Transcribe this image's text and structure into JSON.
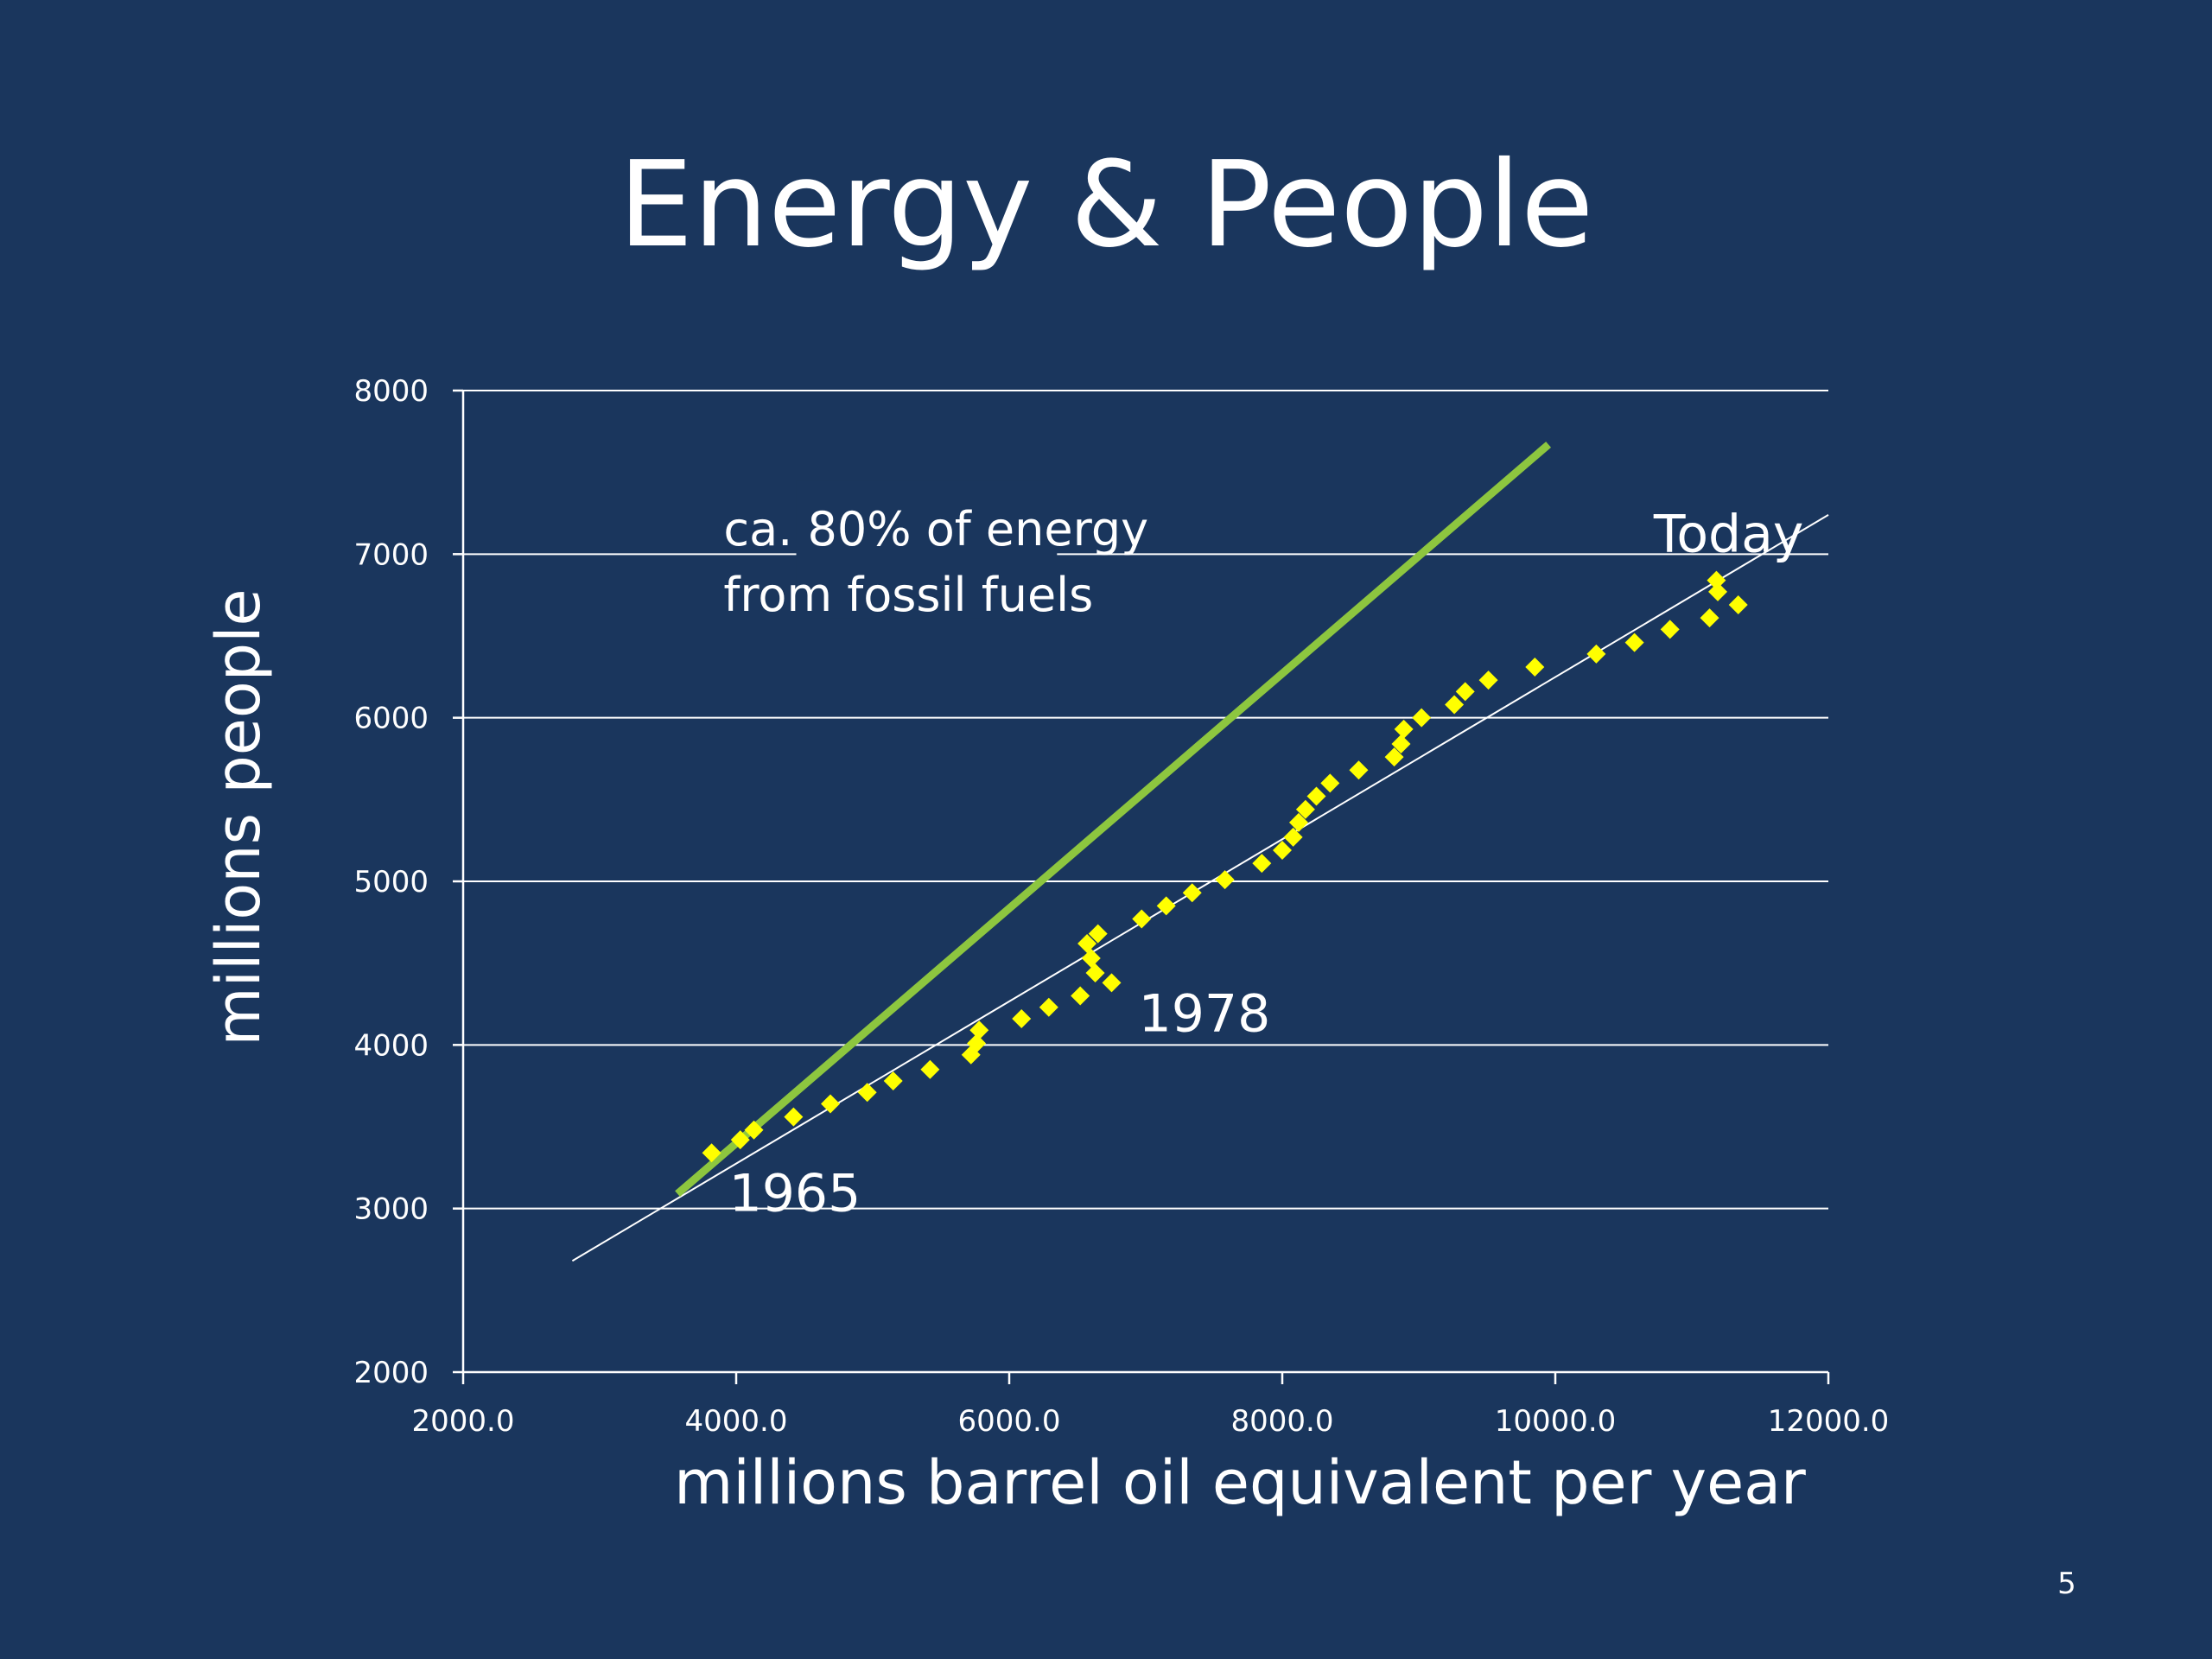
{
  "slide": {
    "title": "Energy & People",
    "page_number": "5",
    "colors": {
      "background": "#1a365d",
      "text": "#ffffff",
      "gridline": "#ffffff",
      "data_marker": "#ffff00",
      "fossil_line": "#8dc63f",
      "trend_line": "#ffffff"
    }
  },
  "chart_data": {
    "type": "scatter",
    "title": "",
    "xlabel": "millions barrel oil equivalent  per year",
    "ylabel": "millions people",
    "xlim": [
      2000,
      12000
    ],
    "ylim": [
      2000,
      8000
    ],
    "x_ticks": [
      2000,
      4000,
      6000,
      8000,
      10000,
      12000
    ],
    "x_tick_labels": [
      "2000.0",
      "4000.0",
      "6000.0",
      "8000.0",
      "10000.0",
      "12000.0"
    ],
    "y_ticks": [
      2000,
      3000,
      4000,
      5000,
      6000,
      7000,
      8000
    ],
    "y_tick_labels": [
      "2000",
      "3000",
      "4000",
      "5000",
      "6000",
      "7000",
      "8000"
    ],
    "grid": "horizontal",
    "legend": "none",
    "marker_shape": "diamond",
    "series": [
      {
        "points": [
          [
            3820,
            3340
          ],
          [
            4030,
            3420
          ],
          [
            4130,
            3480
          ],
          [
            4420,
            3560
          ],
          [
            4690,
            3640
          ],
          [
            4960,
            3710
          ],
          [
            5150,
            3780
          ],
          [
            5420,
            3850
          ],
          [
            5720,
            3940
          ],
          [
            5760,
            4010
          ],
          [
            5780,
            4090
          ],
          [
            6090,
            4160
          ],
          [
            6290,
            4230
          ],
          [
            6520,
            4300
          ],
          [
            6570,
            4620
          ],
          [
            6600,
            4530
          ],
          [
            6630,
            4440
          ],
          [
            6650,
            4680
          ],
          [
            6750,
            4380
          ],
          [
            6970,
            4770
          ],
          [
            7150,
            4850
          ],
          [
            7340,
            4930
          ],
          [
            7580,
            5010
          ],
          [
            7850,
            5110
          ],
          [
            8000,
            5190
          ],
          [
            8080,
            5270
          ],
          [
            8120,
            5360
          ],
          [
            8170,
            5440
          ],
          [
            8250,
            5520
          ],
          [
            8350,
            5600
          ],
          [
            8560,
            5680
          ],
          [
            8820,
            5760
          ],
          [
            8870,
            5840
          ],
          [
            8890,
            5930
          ],
          [
            9020,
            6000
          ],
          [
            9260,
            6080
          ],
          [
            9340,
            6160
          ],
          [
            9510,
            6230
          ],
          [
            9850,
            6310
          ],
          [
            10300,
            6390
          ],
          [
            10580,
            6460
          ],
          [
            10840,
            6540
          ],
          [
            11130,
            6610
          ],
          [
            11180,
            6840
          ],
          [
            11190,
            6770
          ],
          [
            11340,
            6690
          ]
        ]
      }
    ],
    "lines": [
      {
        "from": [
          3570,
          3090
        ],
        "to": [
          9950,
          7670
        ]
      },
      {
        "from": [
          2800,
          2680
        ],
        "to": [
          12000,
          7240
        ]
      }
    ],
    "annotations": [
      {
        "text": "ca. 80% of energy",
        "x": 5300,
        "y": 7160
      },
      {
        "text": "from fossil fuels",
        "x": 5300,
        "y": 6760
      },
      {
        "text": "Today",
        "x": 11270,
        "y": 7120
      },
      {
        "text": "1978",
        "x": 7430,
        "y": 4190
      },
      {
        "text": "1965",
        "x": 4430,
        "y": 3090
      }
    ]
  }
}
